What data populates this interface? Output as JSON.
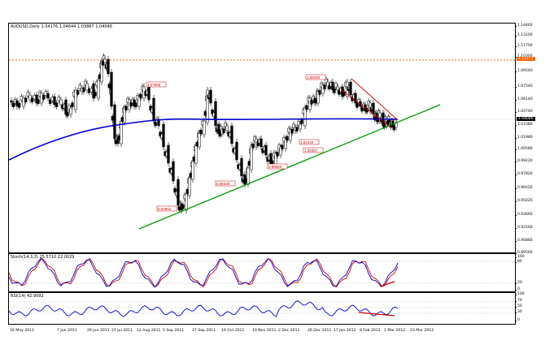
{
  "main": {
    "title": "AUDUSD,Daily  1.04176 1.04644 1.03887 1.04046",
    "price_axis": [
      "1.14460",
      "1.13100",
      "1.11700",
      "1.10300",
      "1.09540",
      "1.07540",
      "1.06140",
      "1.04740",
      "1.03380",
      "1.01980",
      "1.00580",
      "0.99220",
      "0.97820",
      "0.96420",
      "0.95020",
      "0.93660",
      "0.92260",
      "0.90860",
      "0.89500"
    ],
    "hl_orange": "1.10777",
    "hl_current": "1.04046",
    "labels": [
      "1.07655",
      "1.08490",
      "1.02440",
      "1.00457",
      "0.98660",
      "0.96430",
      "0.94902"
    ]
  },
  "stoch": {
    "title": "Stoch(14,3,3) 25.5710 22.0029",
    "levels": [
      "100",
      "80",
      "20",
      "0"
    ]
  },
  "rsi": {
    "title": "RSI(14) 42.9092",
    "levels": [
      "100",
      "70",
      "50",
      "30",
      "0"
    ]
  },
  "time_axis": [
    "16 May 2011",
    "7 Jun 2011",
    "29 Jun 2011",
    "21 Jul 2011",
    "12 Aug 2011",
    "5 Sep 2011",
    "27 Sep 2011",
    "19 Oct 2011",
    "10 Nov 2011",
    "2 Dec 2011",
    "26 Dec 2011",
    "17 Jan 2012",
    "8 Feb 2012",
    "1 Mar 2012",
    "23 Mar 2012"
  ],
  "colors": {
    "ma": "#0000cc",
    "trend": "#009900",
    "channel": "#cc0000",
    "orange": "#ff6600",
    "stoch_main": "#0000cc",
    "stoch_signal": "#cc0000",
    "rsi": "#0000cc"
  }
}
